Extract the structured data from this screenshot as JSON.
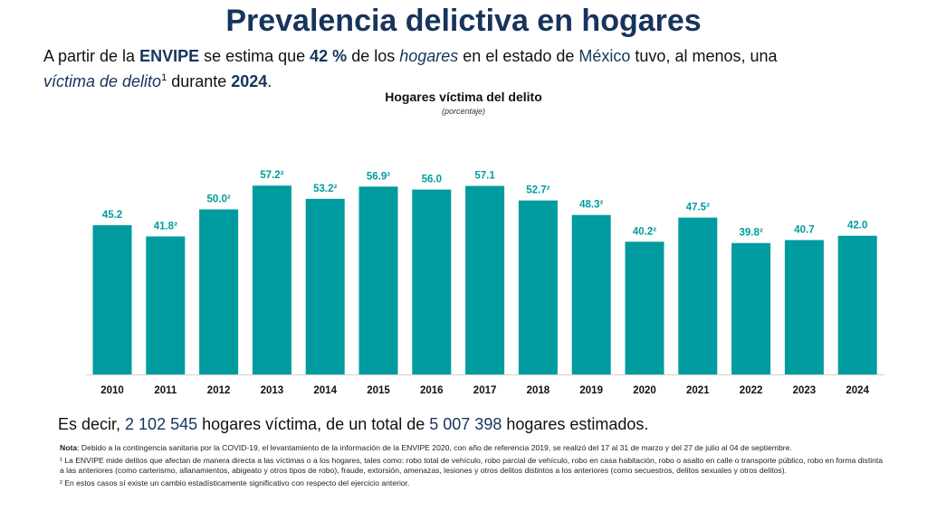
{
  "title": "Prevalencia delictiva en hogares",
  "lead": {
    "t1": "A partir de la ",
    "envipe": "ENVIPE",
    "t2": " se estima que ",
    "pct": "42 %",
    "t3": " de los ",
    "hogares": "hogares",
    "t4": " en el estado de ",
    "state": "México",
    "t5": " tuvo, al menos, una ",
    "victima": "víctima de delito",
    "sup": "1",
    "t6": " durante ",
    "year": "2024",
    "t7": "."
  },
  "summary": {
    "t1": "Es decir, ",
    "victims": "2 102 545",
    "t2": " hogares víctima, de un total de ",
    "total": "5 007 398",
    "t3": " hogares estimados."
  },
  "notes": {
    "nota_label": "Nota",
    "nota": ": Debido a la contingencia sanitaria por la COVID-19, el levantamiento de la información de la ENVIPE 2020, con año de referencia 2019, se realizó del 17 al 31 de marzo y del 27 de julio al 04 de septiembre.",
    "n1": "¹ La ENVIPE mide delitos que afectan de manera directa a las víctimas o a los hogares, tales como: robo total de vehículo, robo parcial de vehículo, robo en casa habitación, robo o asalto en calle o transporte público, robo en forma distinta a las anteriores (como carterismo, allanamientos, abigeato y otros tipos de robo), fraude, extorsión, amenazas, lesiones y otros delitos distintos a los anteriores (como secuestros, delitos sexuales y otros delitos).",
    "n2": "² En estos casos sí existe un cambio estadísticamente significativo con respecto del ejercicio anterior."
  },
  "chart_data": {
    "type": "bar",
    "title": "Hogares víctima del delito",
    "subtitle": "(porcentaje)",
    "categories": [
      "2010",
      "2011",
      "2012",
      "2013",
      "2014",
      "2015",
      "2016",
      "2017",
      "2018",
      "2019",
      "2020",
      "2021",
      "2022",
      "2023",
      "2024"
    ],
    "values": [
      45.2,
      41.8,
      50.0,
      57.2,
      53.2,
      56.9,
      56.0,
      57.1,
      52.7,
      48.3,
      40.2,
      47.5,
      39.8,
      40.7,
      42.0
    ],
    "labels": [
      "45.2",
      "41.8²",
      "50.0²",
      "57.2²",
      "53.2²",
      "56.9²",
      "56.0",
      "57.1",
      "52.7²",
      "48.3²",
      "40.2²",
      "47.5²",
      "39.8²",
      "40.7",
      "42.0"
    ],
    "ylim": [
      0,
      60
    ],
    "grid": false,
    "bar_color": "#009B9E",
    "label_color": "#009B9E"
  }
}
